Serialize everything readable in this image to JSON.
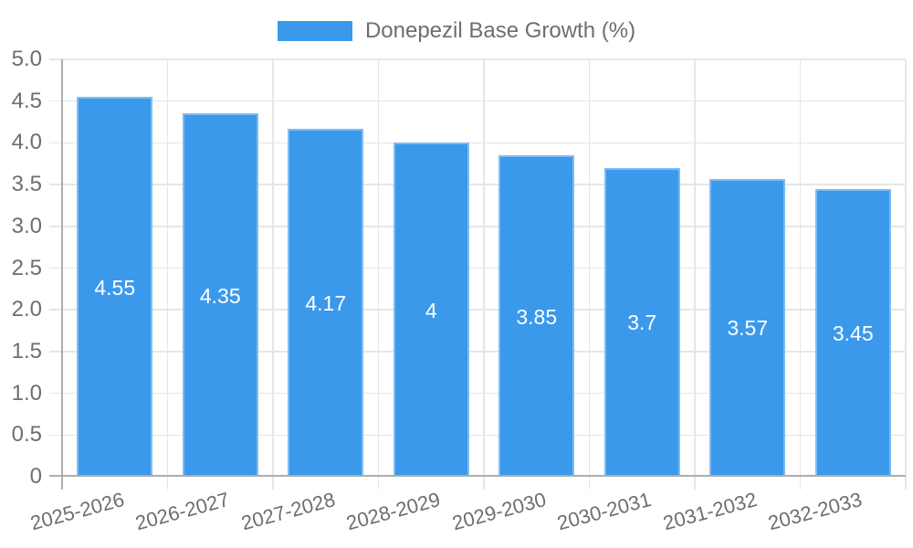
{
  "chart_data": {
    "type": "bar",
    "title": "",
    "legend": {
      "label": "Donepezil Base Growth (%)",
      "position": "top-center"
    },
    "categories": [
      "2025-2026",
      "2026-2027",
      "2027-2028",
      "2028-2029",
      "2029-2030",
      "2030-2031",
      "2031-2032",
      "2032-2033"
    ],
    "series": [
      {
        "name": "Donepezil Base Growth (%)",
        "values": [
          4.55,
          4.35,
          4.17,
          4,
          3.85,
          3.7,
          3.57,
          3.45
        ]
      }
    ],
    "bar_value_labels": [
      "4.55",
      "4.35",
      "4.17",
      "4",
      "3.85",
      "3.7",
      "3.57",
      "3.45"
    ],
    "xlabel": "",
    "ylabel": "",
    "ylim": [
      0,
      5
    ],
    "y_tick_labels": [
      "0",
      "0.5",
      "1.0",
      "1.5",
      "2.0",
      "2.5",
      "3.0",
      "3.5",
      "4.0",
      "4.5",
      "5.0"
    ],
    "grid": true,
    "x_label_rotation_deg": -15,
    "colors": {
      "bar": "#3b99ec",
      "bar_value_text": "#ffffff",
      "grid": "#e6e6e6",
      "axis": "#adadad",
      "tick_text": "#6e6e6e",
      "legend_text": "#6e6e6e"
    }
  }
}
